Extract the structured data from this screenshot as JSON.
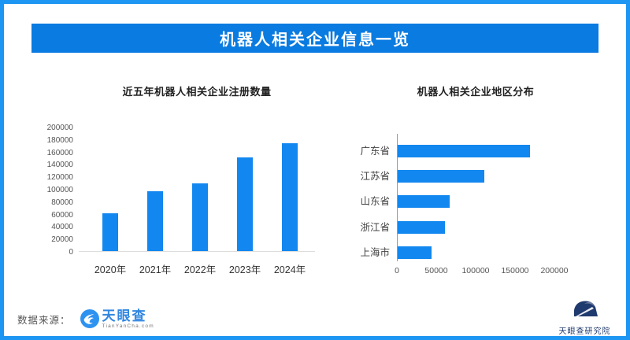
{
  "header": {
    "title": "机器人相关企业信息一览",
    "bg_color": "#0a7be0",
    "text_color": "#ffffff"
  },
  "theme": {
    "frame_border_color": "#1d95f2",
    "bar_color": "#1287ef",
    "background": "#ffffff"
  },
  "chart_data": [
    {
      "type": "bar",
      "title": "近五年机器人相关企业注册数量",
      "categories": [
        "2020年",
        "2021年",
        "2022年",
        "2023年",
        "2024年"
      ],
      "values": [
        61000,
        96000,
        109000,
        151000,
        174000
      ],
      "xlabel": "",
      "ylabel": "",
      "ylim": [
        0,
        200000
      ],
      "yticks": [
        0,
        20000,
        40000,
        60000,
        80000,
        100000,
        120000,
        140000,
        160000,
        180000,
        200000
      ],
      "grid": false,
      "legend": "none",
      "bar_color": "#1287ef"
    },
    {
      "type": "bar",
      "orientation": "horizontal",
      "title": "机器人相关企业地区分布",
      "categories": [
        "广东省",
        "江苏省",
        "山东省",
        "浙江省",
        "上海市"
      ],
      "values": [
        168000,
        110000,
        66000,
        60000,
        43000
      ],
      "xlabel": "",
      "ylabel": "",
      "xlim": [
        0,
        200000
      ],
      "xticks": [
        0,
        50000,
        100000,
        150000,
        200000
      ],
      "grid": false,
      "legend": "none",
      "bar_color": "#1287ef"
    }
  ],
  "footer": {
    "source_label": "数据来源：",
    "tianyancha_name": "天眼查",
    "tianyancha_sub": "TianYanCha.com",
    "institute_label": "天眼查研究院"
  }
}
